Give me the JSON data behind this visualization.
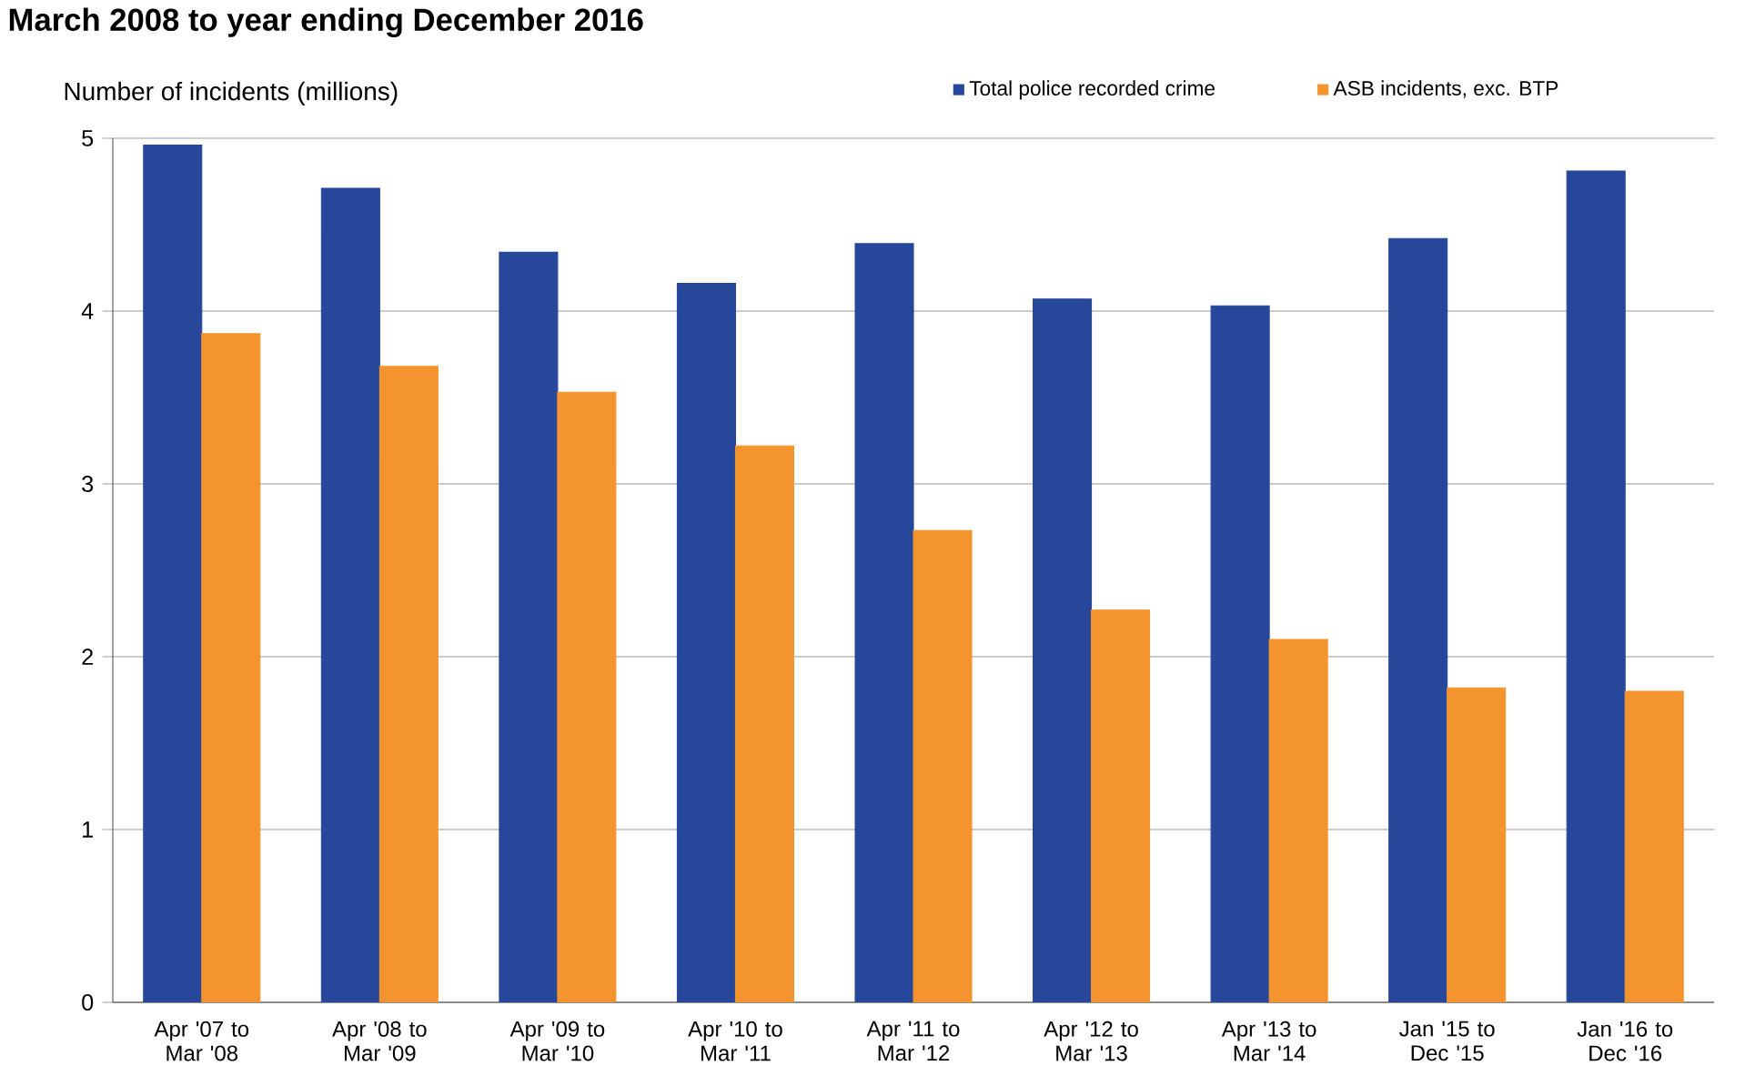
{
  "chart_data": {
    "type": "bar",
    "title": "March 2008 to year ending December 2016",
    "ylabel": "Number of incidents (millions)",
    "categories": [
      "Apr '07 to Mar '08",
      "Apr '08 to Mar '09",
      "Apr '09 to Mar '10",
      "Apr '10 to Mar '11",
      "Apr '11 to Mar '12",
      "Apr '12 to Mar '13",
      "Apr '13 to Mar '14",
      "Jan '15 to Dec '15",
      "Jan '16 to Dec '16"
    ],
    "series": [
      {
        "name": "Total police recorded crime",
        "color": "#27479a",
        "values": [
          4.96,
          4.71,
          4.34,
          4.16,
          4.39,
          4.07,
          4.03,
          4.42,
          4.81
        ]
      },
      {
        "name": "ASB incidents, exc. BTP",
        "color": "#f4942f",
        "values": [
          3.87,
          3.68,
          3.53,
          3.22,
          2.73,
          2.27,
          2.1,
          1.82,
          1.8
        ]
      }
    ],
    "ylim": [
      0,
      5
    ],
    "yticks": [
      0,
      1,
      2,
      3,
      4,
      5
    ],
    "grid": "y",
    "legend": "top"
  }
}
